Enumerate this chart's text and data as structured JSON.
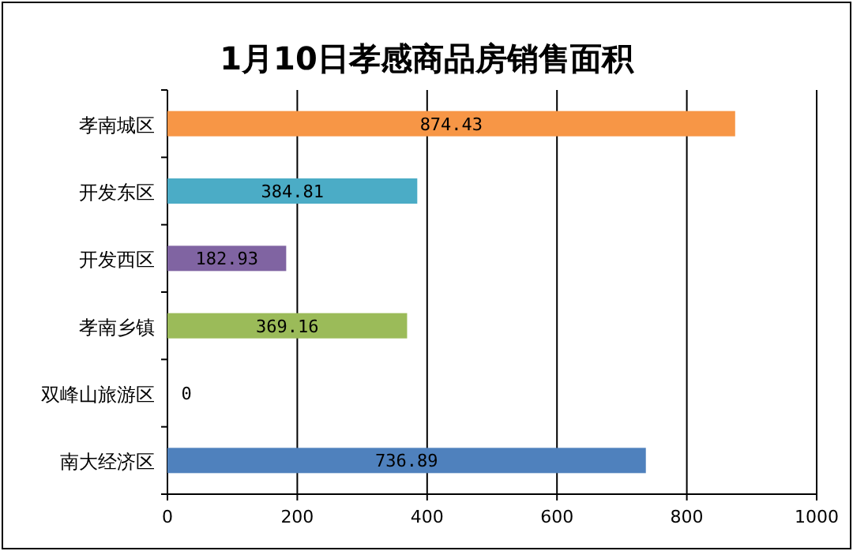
{
  "chart_data": {
    "type": "bar",
    "orientation": "horizontal",
    "title": "1月10日孝感商品房销售面积",
    "categories": [
      "孝南城区",
      "开发东区",
      "开发西区",
      "孝南乡镇",
      "双峰山旅游区",
      "南大经济区"
    ],
    "values": [
      874.43,
      384.81,
      182.93,
      369.16,
      0,
      736.89
    ],
    "colors": [
      "#f79646",
      "#4bacc6",
      "#8064a2",
      "#9bbb59",
      "#4f81bd",
      "#4f81bd"
    ],
    "xlim": [
      0,
      1000
    ],
    "xticks": [
      0,
      200,
      400,
      600,
      800,
      1000
    ],
    "grid": "x",
    "data_labels": true
  }
}
